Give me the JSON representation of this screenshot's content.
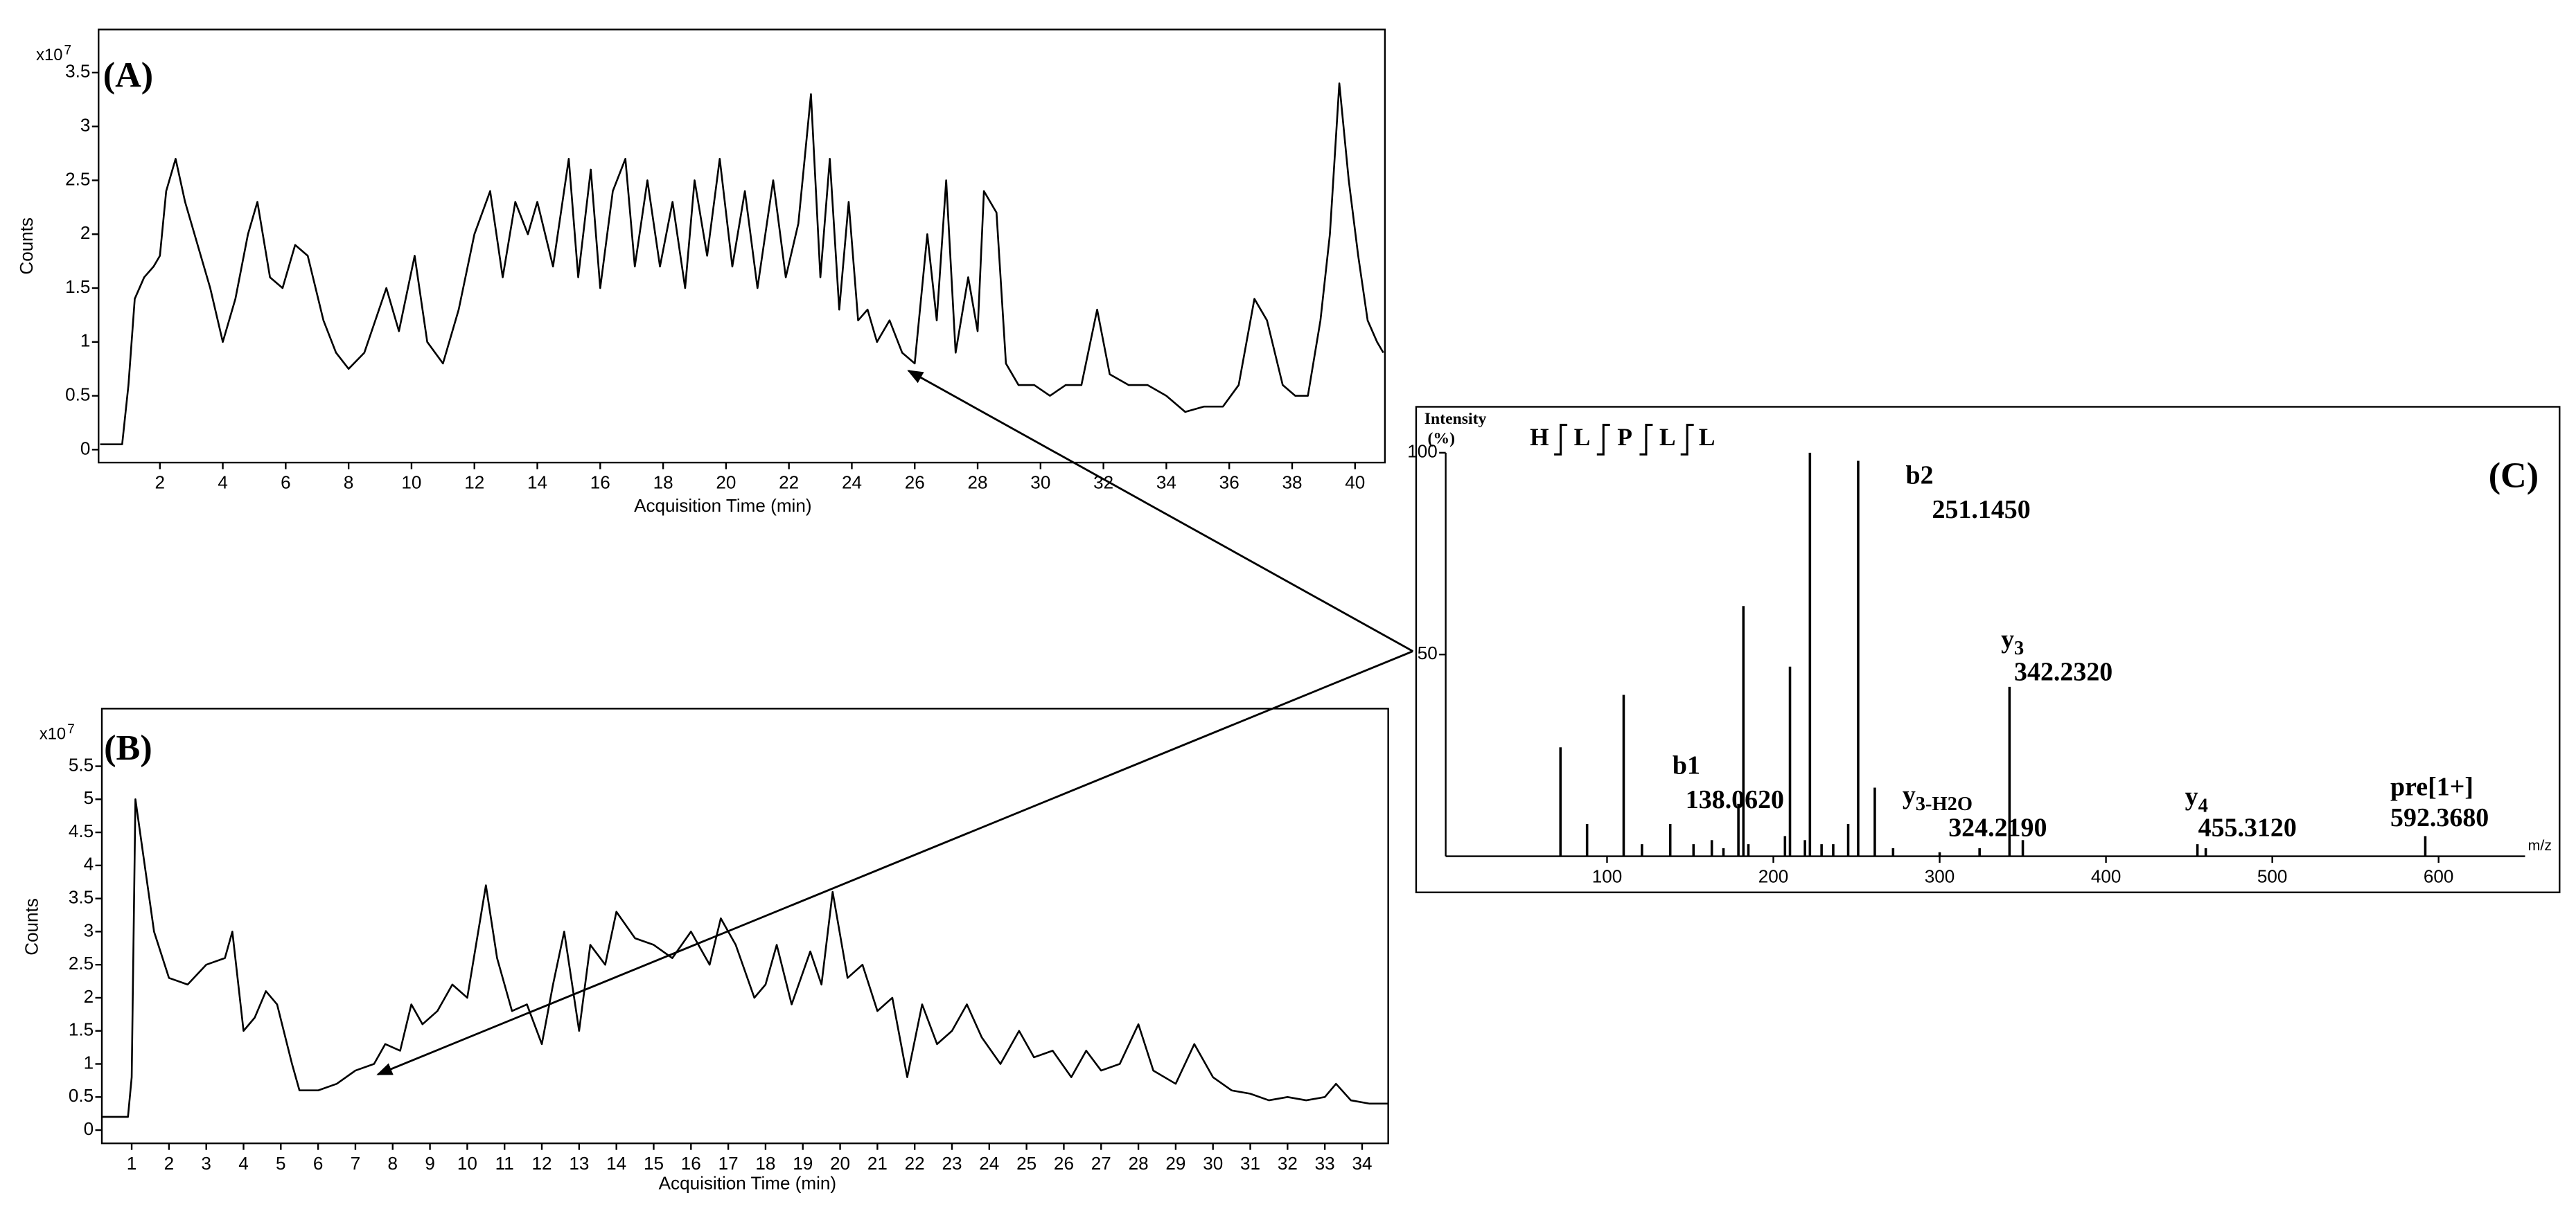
{
  "chart_data": [
    {
      "type": "line",
      "label": "(A)",
      "y_multiplier": "x10",
      "y_exponent": "7",
      "ylabel": "Counts",
      "xlabel": "Acquisition Time (min)",
      "xlim": [
        0.05,
        40.95
      ],
      "ylim": [
        -0.12,
        3.9
      ],
      "xticks": [
        2,
        4,
        6,
        8,
        10,
        12,
        14,
        16,
        18,
        20,
        22,
        24,
        26,
        28,
        30,
        32,
        34,
        36,
        38,
        40
      ],
      "yticks": [
        0,
        0.5,
        1,
        1.5,
        2,
        2.5,
        3,
        3.5
      ],
      "color": "#000000",
      "x": [
        0.1,
        0.8,
        1.0,
        1.2,
        1.5,
        1.8,
        2.0,
        2.2,
        2.5,
        2.8,
        3.2,
        3.6,
        4.0,
        4.4,
        4.8,
        5.1,
        5.5,
        5.9,
        6.3,
        6.7,
        7.2,
        7.6,
        8.0,
        8.5,
        9.2,
        9.6,
        10.1,
        10.5,
        11.0,
        11.5,
        12.0,
        12.5,
        12.9,
        13.3,
        13.7,
        14.0,
        14.5,
        15.0,
        15.3,
        15.7,
        16.0,
        16.4,
        16.8,
        17.1,
        17.5,
        17.9,
        18.3,
        18.7,
        19.0,
        19.4,
        19.8,
        20.2,
        20.6,
        21.0,
        21.5,
        21.9,
        22.3,
        22.7,
        23.0,
        23.3,
        23.6,
        23.9,
        24.2,
        24.5,
        24.8,
        25.2,
        25.6,
        26.0,
        26.4,
        26.7,
        27.0,
        27.3,
        27.7,
        28.0,
        28.2,
        28.6,
        28.9,
        29.3,
        29.8,
        30.3,
        30.8,
        31.3,
        31.8,
        32.2,
        32.8,
        33.4,
        34.0,
        34.6,
        35.2,
        35.8,
        36.3,
        36.8,
        37.2,
        37.7,
        38.1,
        38.5,
        38.9,
        39.2,
        39.5,
        39.8,
        40.1,
        40.4,
        40.7,
        40.9
      ],
      "values": [
        0.05,
        0.05,
        0.6,
        1.4,
        1.6,
        1.7,
        1.8,
        2.4,
        2.7,
        2.3,
        1.9,
        1.5,
        1.0,
        1.4,
        2.0,
        2.3,
        1.6,
        1.5,
        1.9,
        1.8,
        1.2,
        0.9,
        0.75,
        0.9,
        1.5,
        1.1,
        1.8,
        1.0,
        0.8,
        1.3,
        2.0,
        2.4,
        1.6,
        2.3,
        2.0,
        2.3,
        1.7,
        2.7,
        1.6,
        2.6,
        1.5,
        2.4,
        2.7,
        1.7,
        2.5,
        1.7,
        2.3,
        1.5,
        2.5,
        1.8,
        2.7,
        1.7,
        2.4,
        1.5,
        2.5,
        1.6,
        2.1,
        3.3,
        1.6,
        2.7,
        1.3,
        2.3,
        1.2,
        1.3,
        1.0,
        1.2,
        0.9,
        0.8,
        2.0,
        1.2,
        2.5,
        0.9,
        1.6,
        1.1,
        2.4,
        2.2,
        0.8,
        0.6,
        0.6,
        0.5,
        0.6,
        0.6,
        1.3,
        0.7,
        0.6,
        0.6,
        0.5,
        0.35,
        0.4,
        0.4,
        0.6,
        1.4,
        1.2,
        0.6,
        0.5,
        0.5,
        1.2,
        2.0,
        3.4,
        2.5,
        1.8,
        1.2,
        1.0,
        0.9
      ]
    },
    {
      "type": "line",
      "label": "(B)",
      "y_multiplier": "x10",
      "y_exponent": "7",
      "ylabel": "Counts",
      "xlabel": "Acquisition Time (min)",
      "xlim": [
        0.2,
        34.7
      ],
      "ylim": [
        -0.2,
        6.37
      ],
      "xticks": [
        1,
        2,
        3,
        4,
        5,
        6,
        7,
        8,
        9,
        10,
        11,
        12,
        13,
        14,
        15,
        16,
        17,
        18,
        19,
        20,
        21,
        22,
        23,
        24,
        25,
        26,
        27,
        28,
        29,
        30,
        31,
        32,
        33,
        34
      ],
      "yticks": [
        0,
        0.5,
        1,
        1.5,
        2,
        2.5,
        3,
        3.5,
        4,
        4.5,
        5,
        5.5
      ],
      "color": "#000000",
      "x": [
        0.2,
        0.9,
        1.0,
        1.1,
        1.3,
        1.6,
        2.0,
        2.5,
        3.0,
        3.5,
        3.7,
        4.0,
        4.3,
        4.6,
        4.9,
        5.3,
        5.5,
        6.0,
        6.5,
        7.0,
        7.5,
        7.8,
        8.2,
        8.5,
        8.8,
        9.2,
        9.6,
        10.0,
        10.5,
        10.8,
        11.2,
        11.6,
        12.0,
        12.3,
        12.6,
        13.0,
        13.3,
        13.7,
        14.0,
        14.5,
        15.0,
        15.5,
        16.0,
        16.5,
        16.8,
        17.2,
        17.7,
        18.0,
        18.3,
        18.7,
        19.2,
        19.5,
        19.8,
        20.2,
        20.6,
        21.0,
        21.4,
        21.8,
        22.2,
        22.6,
        23.0,
        23.4,
        23.8,
        24.3,
        24.8,
        25.2,
        25.7,
        26.2,
        26.6,
        27.0,
        27.5,
        28.0,
        28.4,
        29.0,
        29.5,
        30.0,
        30.5,
        31.0,
        31.5,
        32.0,
        32.5,
        33.0,
        33.3,
        33.7,
        34.2,
        34.7
      ],
      "values": [
        0.2,
        0.2,
        0.8,
        5.0,
        4.2,
        3.0,
        2.3,
        2.2,
        2.5,
        2.6,
        3.0,
        1.5,
        1.7,
        2.1,
        1.9,
        1.0,
        0.6,
        0.6,
        0.7,
        0.9,
        1.0,
        1.3,
        1.2,
        1.9,
        1.6,
        1.8,
        2.2,
        2.0,
        3.7,
        2.6,
        1.8,
        1.9,
        1.3,
        2.2,
        3.0,
        1.5,
        2.8,
        2.5,
        3.3,
        2.9,
        2.8,
        2.6,
        3.0,
        2.5,
        3.2,
        2.8,
        2.0,
        2.2,
        2.8,
        1.9,
        2.7,
        2.2,
        3.6,
        2.3,
        2.5,
        1.8,
        2.0,
        0.8,
        1.9,
        1.3,
        1.5,
        1.9,
        1.4,
        1.0,
        1.5,
        1.1,
        1.2,
        0.8,
        1.2,
        0.9,
        1.0,
        1.6,
        0.9,
        0.7,
        1.3,
        0.8,
        0.6,
        0.55,
        0.45,
        0.5,
        0.45,
        0.5,
        0.7,
        0.45,
        0.4,
        0.4
      ]
    },
    {
      "type": "stem",
      "label": "(C)",
      "ylabel": "Intensity",
      "ylabel_unit": "(%)",
      "xlabel": "m/z",
      "sequence": [
        "H",
        "L",
        "P",
        "L",
        "L"
      ],
      "xlim": [
        3,
        652
      ],
      "ylim": [
        0,
        100
      ],
      "xticks": [
        100,
        200,
        300,
        400,
        500,
        600
      ],
      "yticks": [
        50,
        100
      ],
      "color": "#000000",
      "x": [
        72,
        88,
        110,
        121,
        138,
        152,
        163,
        170,
        179,
        182,
        185,
        207,
        210,
        219,
        222,
        229,
        236,
        245,
        251,
        261,
        272,
        300,
        324,
        342,
        350,
        455,
        460,
        592
      ],
      "values": [
        27,
        8,
        40,
        3,
        8,
        3,
        4,
        2,
        13,
        62,
        3,
        5,
        47,
        4,
        100,
        3,
        3,
        8,
        98,
        17,
        2,
        1,
        2,
        42,
        4,
        3,
        2,
        5
      ],
      "annotations": [
        {
          "ion": "b2",
          "mass": "251.1450"
        },
        {
          "ion": "y",
          "sub": "3",
          "mass": "342.2320"
        },
        {
          "ion": "b1",
          "mass": "138.0620"
        },
        {
          "ion": "y",
          "sub": "3-H2O",
          "mass": "324.2190"
        },
        {
          "ion": "y",
          "sub": "4",
          "mass": "455.3120"
        },
        {
          "ion": "pre[1+]",
          "mass": "592.3680"
        }
      ]
    }
  ]
}
